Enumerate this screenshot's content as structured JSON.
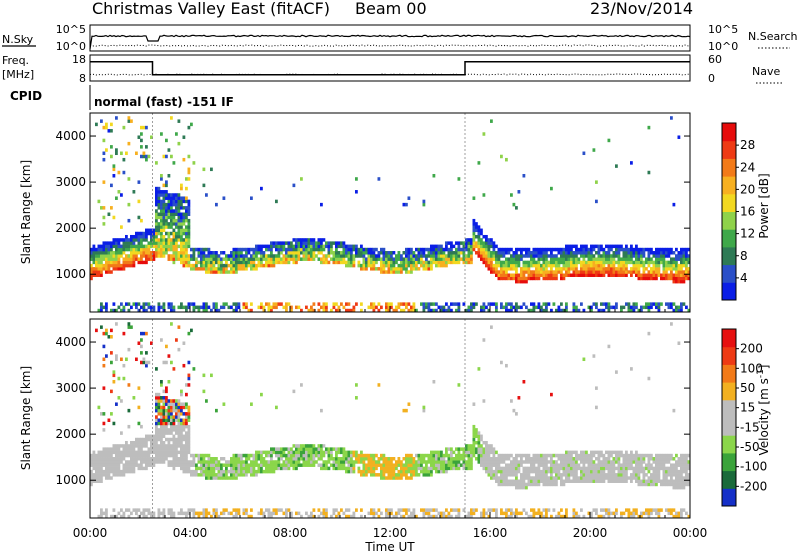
{
  "header": {
    "radar": "Christmas Valley East (fitACF)",
    "beam": "Beam 00",
    "date": "23/Nov/2014"
  },
  "noise_panel": {
    "left_label": "N.Sky",
    "right_label": "N.Search",
    "left_ticks": [
      "10^5",
      "10^0"
    ],
    "right_ticks": [
      "10^5",
      "10^0"
    ]
  },
  "freq_panel": {
    "left_label_1": "Freq.",
    "left_label_2": "[MHz]",
    "right_label": "Nave",
    "left_ticks": [
      "18",
      "8"
    ],
    "right_ticks": [
      "60",
      "0"
    ],
    "freq_steps": [
      {
        "start_h": 0.0,
        "end_h": 2.5,
        "mhz": 15.4
      },
      {
        "start_h": 2.5,
        "end_h": 15.0,
        "mhz": 10.4
      },
      {
        "start_h": 15.0,
        "end_h": 24.0,
        "mhz": 15.4
      }
    ]
  },
  "cpid_panel": {
    "label": "CPID",
    "text": "normal (fast) -151 IF"
  },
  "chart_data": [
    {
      "type": "heatmap",
      "name": "Power",
      "ylabel": "Slant Range [km]",
      "y_ticks": [
        1000,
        2000,
        3000,
        4000
      ],
      "ylim": [
        180,
        4500
      ],
      "colorbar_label": "Power [dB]",
      "colorbar_ticks": [
        "28",
        "24",
        "20",
        "16",
        "12",
        "8",
        "4"
      ],
      "colorbar_range": [
        0,
        30
      ],
      "colorbar_colors": [
        "#0a1ee6",
        "#2a4fc8",
        "#2e7a55",
        "#3fa84a",
        "#8fd24a",
        "#f2d820",
        "#f7b020",
        "#f27a18",
        "#ee3a14",
        "#e60c0c"
      ]
    },
    {
      "type": "heatmap",
      "name": "Velocity",
      "ylabel": "Slant Range [km]",
      "y_ticks": [
        1000,
        2000,
        3000,
        4000
      ],
      "ylim": [
        180,
        4500
      ],
      "colorbar_label": "Velocity [m s-1]",
      "colorbar_ticks": [
        "200",
        "100",
        "50",
        "15",
        "-15",
        "-50",
        "-100",
        "-200"
      ],
      "colorbar_colors": [
        "#1530c8",
        "#1a6a3a",
        "#3aa33a",
        "#8bd64a",
        "#bdbdbd",
        "#bdbdbd",
        "#f2b020",
        "#f27a18",
        "#ee3a14",
        "#e61010"
      ]
    }
  ],
  "x_axis": {
    "label": "Time UT",
    "ticks": [
      "00:00",
      "04:00",
      "08:00",
      "12:00",
      "16:00",
      "20:00",
      "00:00"
    ],
    "xlim_hours": [
      0,
      24
    ]
  }
}
